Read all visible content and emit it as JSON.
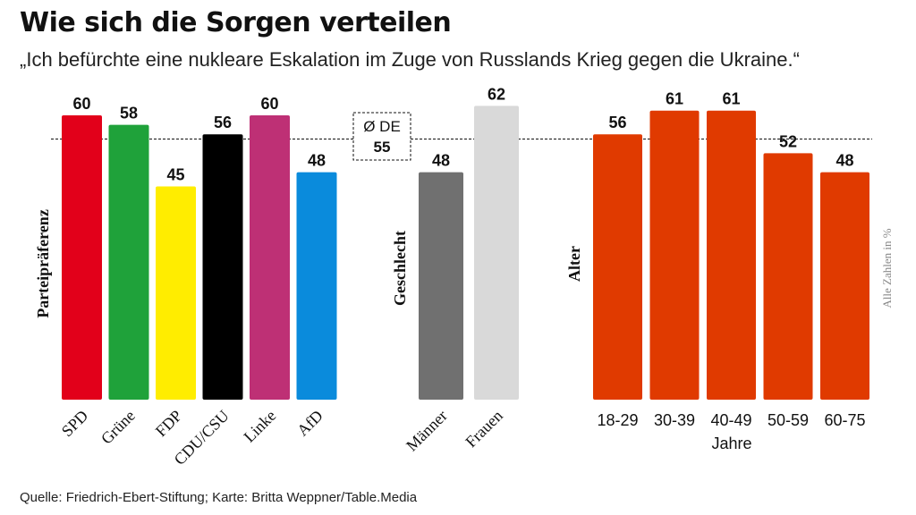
{
  "header": {
    "title": "Wie sich die Sorgen verteilen",
    "subtitle": "„Ich befürchte eine nukleare Eskalation im Zuge von Russlands Krieg gegen die Ukraine.“"
  },
  "footer": {
    "source": "Quelle: Friedrich-Ebert-Stiftung; Karte: Britta Weppner/Table.Media"
  },
  "note": "Alle Zahlen in %",
  "chart_data": {
    "type": "bar",
    "unit": "%",
    "average": {
      "label": "Ø DE",
      "value": 55
    },
    "groups": [
      {
        "label": "Parteipräferenz",
        "categories": [
          "SPD",
          "Grüne",
          "FDP",
          "CDU/CSU",
          "Linke",
          "AfD"
        ],
        "values": [
          60,
          58,
          45,
          56,
          60,
          48
        ],
        "colors": [
          "#e2001a",
          "#1fa23a",
          "#ffed00",
          "#000000",
          "#be3075",
          "#0a8bdc"
        ]
      },
      {
        "label": "Geschlecht",
        "categories": [
          "Männer",
          "Frauen"
        ],
        "values": [
          48,
          62
        ],
        "colors": [
          "#707070",
          "#d9d9d9"
        ]
      },
      {
        "label": "Alter",
        "categories": [
          "18-29",
          "30-39",
          "40-49",
          "50-59",
          "60-75"
        ],
        "values": [
          56,
          61,
          61,
          52,
          48
        ],
        "colors": [
          "#e03a00",
          "#e03a00",
          "#e03a00",
          "#e03a00",
          "#e03a00"
        ],
        "xlabel": "Jahre"
      }
    ]
  }
}
